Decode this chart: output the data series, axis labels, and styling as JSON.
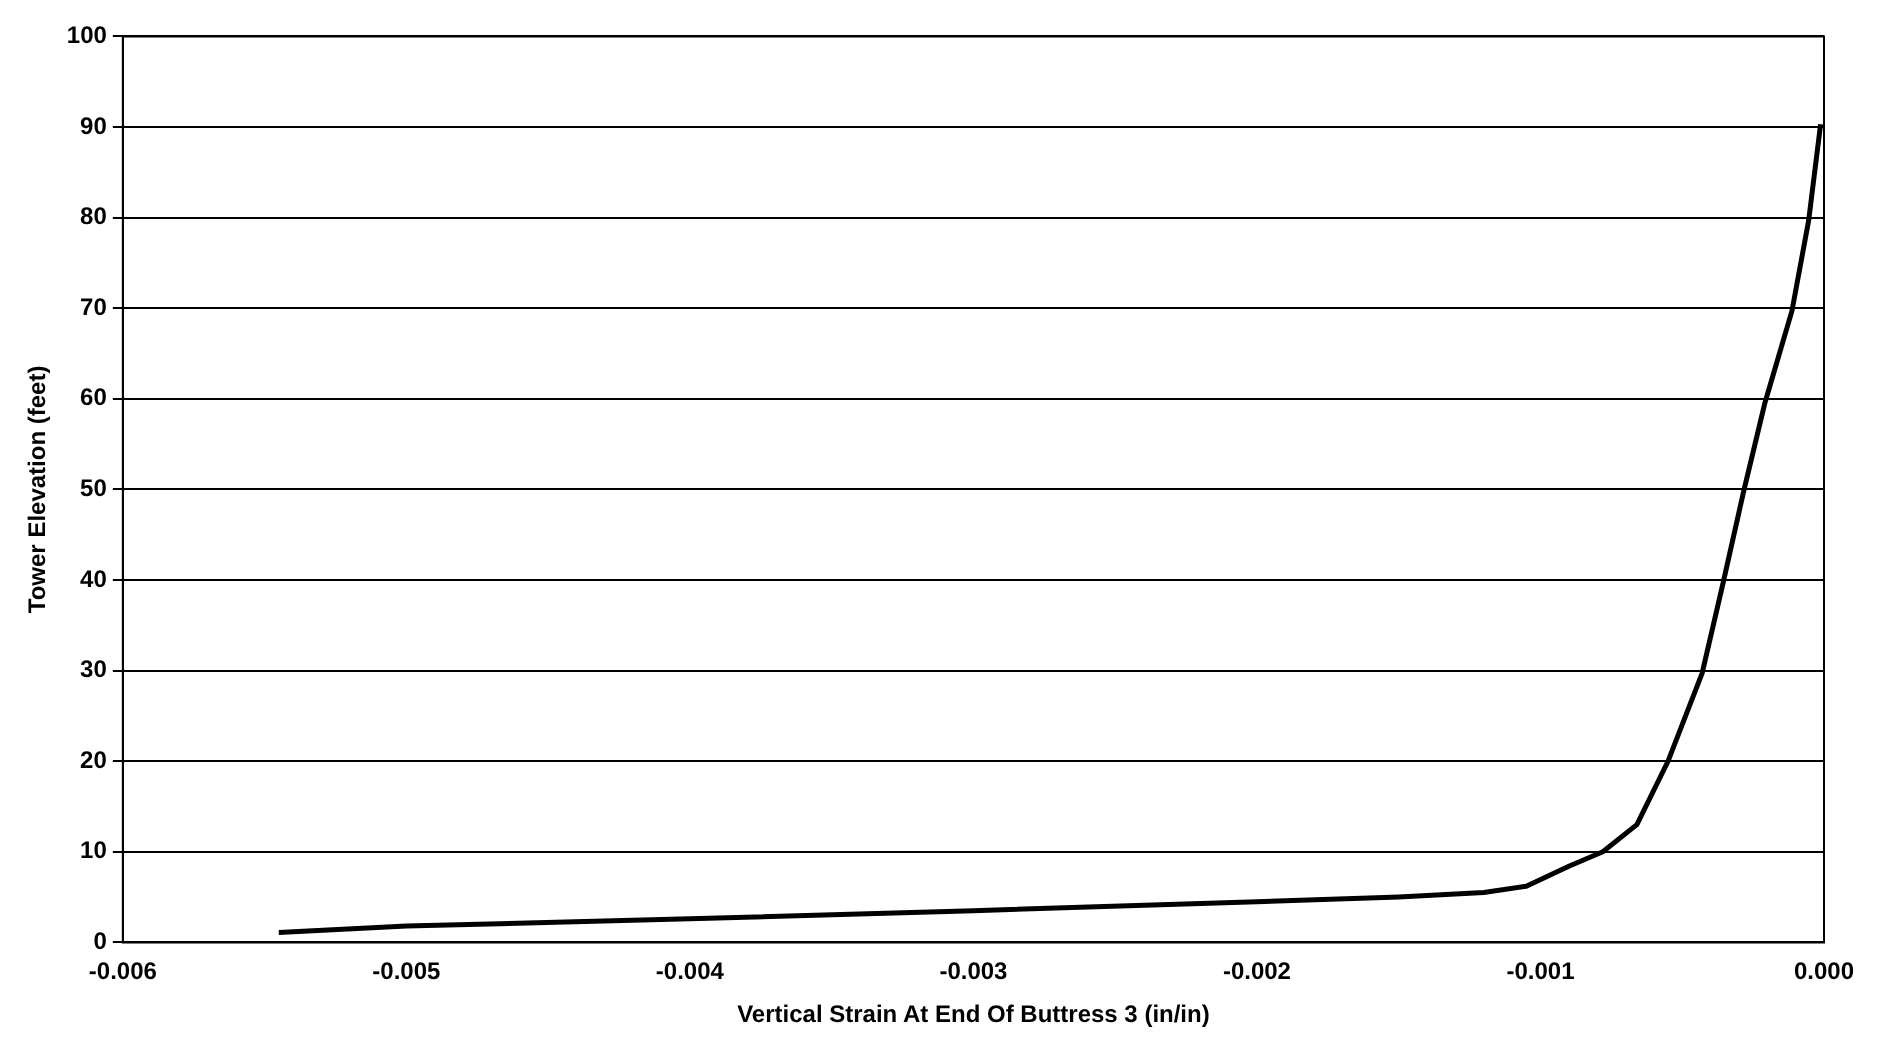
{
  "chart_data": {
    "type": "line",
    "xlabel": "Vertical Strain At End Of Buttress 3 (in/in)",
    "ylabel": "Tower Elevation (feet)",
    "x": [
      -0.00545,
      -0.005,
      -0.004,
      -0.003,
      -0.002,
      -0.0015,
      -0.0012,
      -0.00105,
      -0.0009,
      -0.00078,
      -0.00066,
      -0.00055,
      -0.00043,
      -0.000355,
      -0.000284,
      -0.000208,
      -0.000113,
      -5.4e-05,
      -1.2e-05
    ],
    "series": [
      {
        "color": "#000000",
        "values": [
          1.1,
          1.8,
          2.6,
          3.5,
          4.5,
          5.0,
          5.5,
          6.2,
          8.4,
          10,
          13,
          20,
          29.7,
          39.8,
          49.7,
          59.6,
          69.7,
          79.7,
          90.3
        ]
      }
    ],
    "xlim": [
      -0.006,
      0
    ],
    "xticks": [
      {
        "value": -0.006,
        "label": "-0.006"
      },
      {
        "value": -0.005,
        "label": "-0.005"
      },
      {
        "value": -0.004,
        "label": "-0.004"
      },
      {
        "value": -0.003,
        "label": "-0.003"
      },
      {
        "value": -0.002,
        "label": "-0.002"
      },
      {
        "value": -0.001,
        "label": "-0.001"
      },
      {
        "value": 0,
        "label": "0.000"
      }
    ],
    "ylim": [
      0,
      100
    ],
    "yticks": [
      0,
      10,
      20,
      30,
      40,
      50,
      60,
      70,
      80,
      90,
      100
    ],
    "grid": "y",
    "marker": "none",
    "line_style": "solid"
  }
}
